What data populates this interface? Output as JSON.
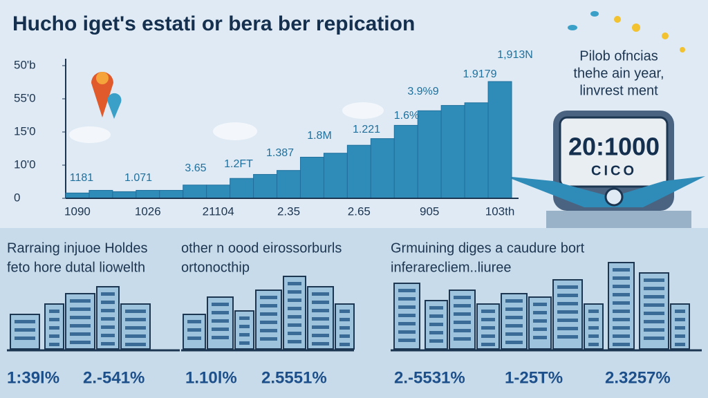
{
  "title": "Hucho iget's estati or bera ber repication",
  "chart_data": {
    "type": "bar",
    "categories": [
      "1090",
      null,
      null,
      "1026",
      null,
      null,
      "21104",
      null,
      null,
      "2.35",
      null,
      null,
      "2.65",
      null,
      null,
      "905",
      null,
      null,
      "103th"
    ],
    "values": [
      4,
      6,
      5,
      6,
      6,
      10,
      10,
      15,
      18,
      21,
      31,
      34,
      40,
      45,
      55,
      66,
      70,
      72,
      88
    ],
    "color": "#2f8cb8",
    "ylim": [
      0,
      100
    ],
    "yticks": [
      {
        "value": 0,
        "label": "0"
      },
      {
        "value": 25,
        "label": "10'0"
      },
      {
        "value": 50,
        "label": "15'0"
      },
      {
        "value": 75,
        "label": "55'0"
      },
      {
        "value": 100,
        "label": "50'b"
      }
    ],
    "annotations": [
      "1181",
      "1.071",
      "3.65",
      "1.2FT",
      "1.387",
      "1.8M",
      "1.221",
      "1.6%",
      "3.9%9",
      "1.9179",
      "1,913N"
    ]
  },
  "side_panel": {
    "lines": [
      "Pilob ofncias",
      "thehe ain year,",
      "linvrest ment"
    ],
    "counter": "20:1000",
    "counter_sub": "CICO"
  },
  "panels": [
    {
      "heading": [
        "Rarraing injuoe Holdes",
        "feto hore dutal liowelth"
      ],
      "figures": [
        "1:39l%",
        "2.-541%"
      ]
    },
    {
      "heading": [
        "other n oood eirossorburls",
        "ortonocthip"
      ],
      "figures": [
        "1.10l%",
        "2.5551%"
      ]
    },
    {
      "heading": [
        "Grmuining diges a caudure bort",
        "inferarecliem..liuree"
      ],
      "figures": [
        "2.-5531%",
        "1-25T%",
        "2.3257%"
      ]
    }
  ]
}
